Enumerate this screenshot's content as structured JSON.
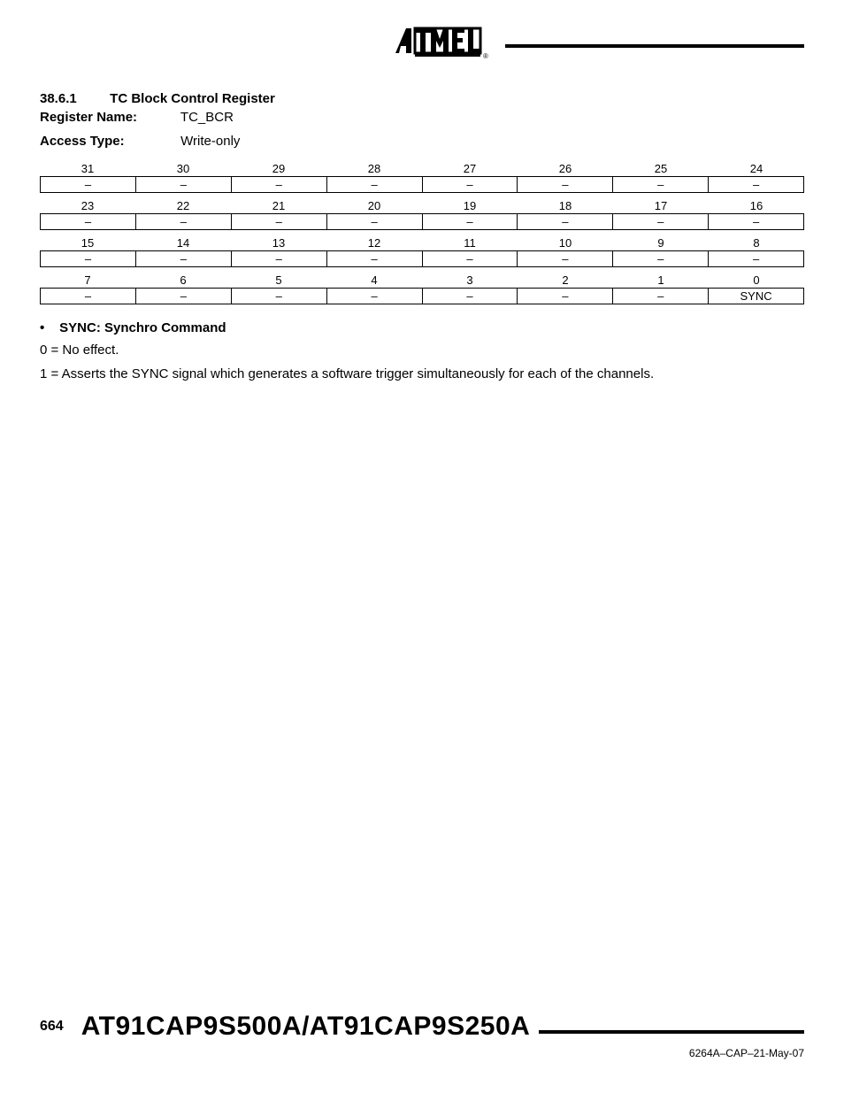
{
  "header": {
    "logo_alt": "Atmel"
  },
  "section": {
    "number": "38.6.1",
    "title": "TC Block Control Register",
    "register_name_label": "Register Name:",
    "register_name_value": "TC_BCR",
    "access_type_label": "Access Type:",
    "access_type_value": "Write-only"
  },
  "bitfield": {
    "background_color": "#ffffff",
    "border_color": "#000000",
    "font_size": 13,
    "rows": [
      {
        "bits": [
          "31",
          "30",
          "29",
          "28",
          "27",
          "26",
          "25",
          "24"
        ],
        "cells": [
          "–",
          "–",
          "–",
          "–",
          "–",
          "–",
          "–",
          "–"
        ]
      },
      {
        "bits": [
          "23",
          "22",
          "21",
          "20",
          "19",
          "18",
          "17",
          "16"
        ],
        "cells": [
          "–",
          "–",
          "–",
          "–",
          "–",
          "–",
          "–",
          "–"
        ]
      },
      {
        "bits": [
          "15",
          "14",
          "13",
          "12",
          "11",
          "10",
          "9",
          "8"
        ],
        "cells": [
          "–",
          "–",
          "–",
          "–",
          "–",
          "–",
          "–",
          "–"
        ]
      },
      {
        "bits": [
          "7",
          "6",
          "5",
          "4",
          "3",
          "2",
          "1",
          "0"
        ],
        "cells": [
          "–",
          "–",
          "–",
          "–",
          "–",
          "–",
          "–",
          "SYNC"
        ]
      }
    ]
  },
  "field": {
    "bullet": "•",
    "name": "SYNC: Synchro Command",
    "line0": "0 = No effect.",
    "line1": "1 = Asserts the SYNC signal which generates a software trigger simultaneously for each of the channels."
  },
  "footer": {
    "page_number": "664",
    "part_number": "AT91CAP9S500A/AT91CAP9S250A",
    "doc_id": "6264A–CAP–21-May-07"
  }
}
